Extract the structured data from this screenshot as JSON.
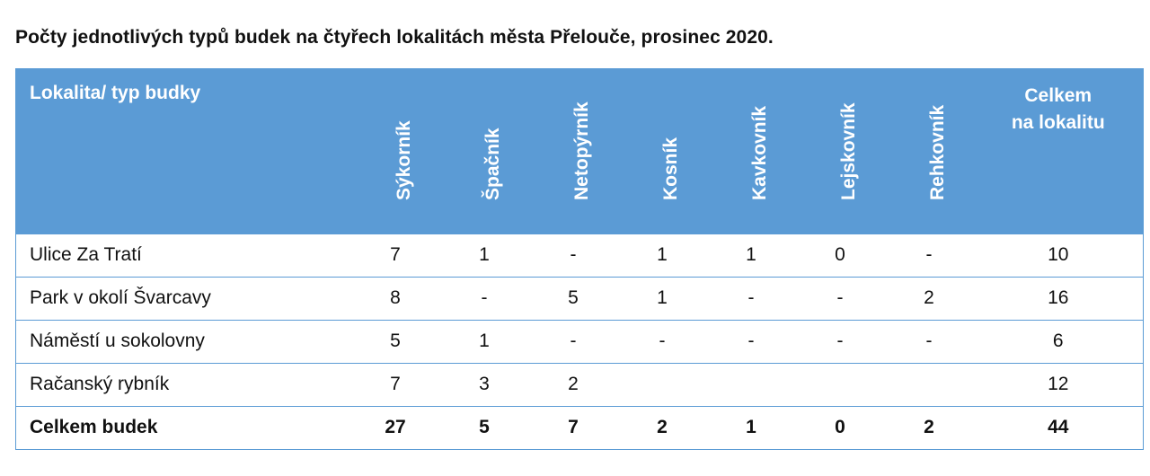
{
  "caption": "Počty jednotlivých typů budek na čtyřech lokalitách města Přelouče, prosinec 2020.",
  "header": {
    "location": "Lokalita/ typ budky",
    "types": [
      "Sýkorník",
      "Špačník",
      "Netopýrník",
      "Kosník",
      "Kavkovník",
      "Lejskovník",
      "Rehkovník"
    ],
    "total_line1": "Celkem",
    "total_line2": "na lokalitu"
  },
  "rows": [
    {
      "location": "Ulice Za Tratí",
      "values": [
        "7",
        "1",
        "-",
        "1",
        "1",
        "0",
        "-"
      ],
      "total": "10"
    },
    {
      "location": "Park v okolí Švarcavy",
      "values": [
        "8",
        "-",
        "5",
        "1",
        "-",
        "-",
        "2"
      ],
      "total": "16"
    },
    {
      "location": "Náměstí u sokolovny",
      "values": [
        "5",
        "1",
        "-",
        "-",
        "-",
        "-",
        "-"
      ],
      "total": "6"
    },
    {
      "location": "Račanský rybník",
      "values": [
        "7",
        "3",
        "2",
        "",
        "",
        "",
        ""
      ],
      "total": "12"
    }
  ],
  "summary": {
    "label": "Celkem budek",
    "values": [
      "27",
      "5",
      "7",
      "2",
      "1",
      "0",
      "2"
    ],
    "total": "44"
  },
  "colors": {
    "header_bg": "#5b9bd5",
    "header_text": "#ffffff",
    "border": "#5b9bd5"
  }
}
